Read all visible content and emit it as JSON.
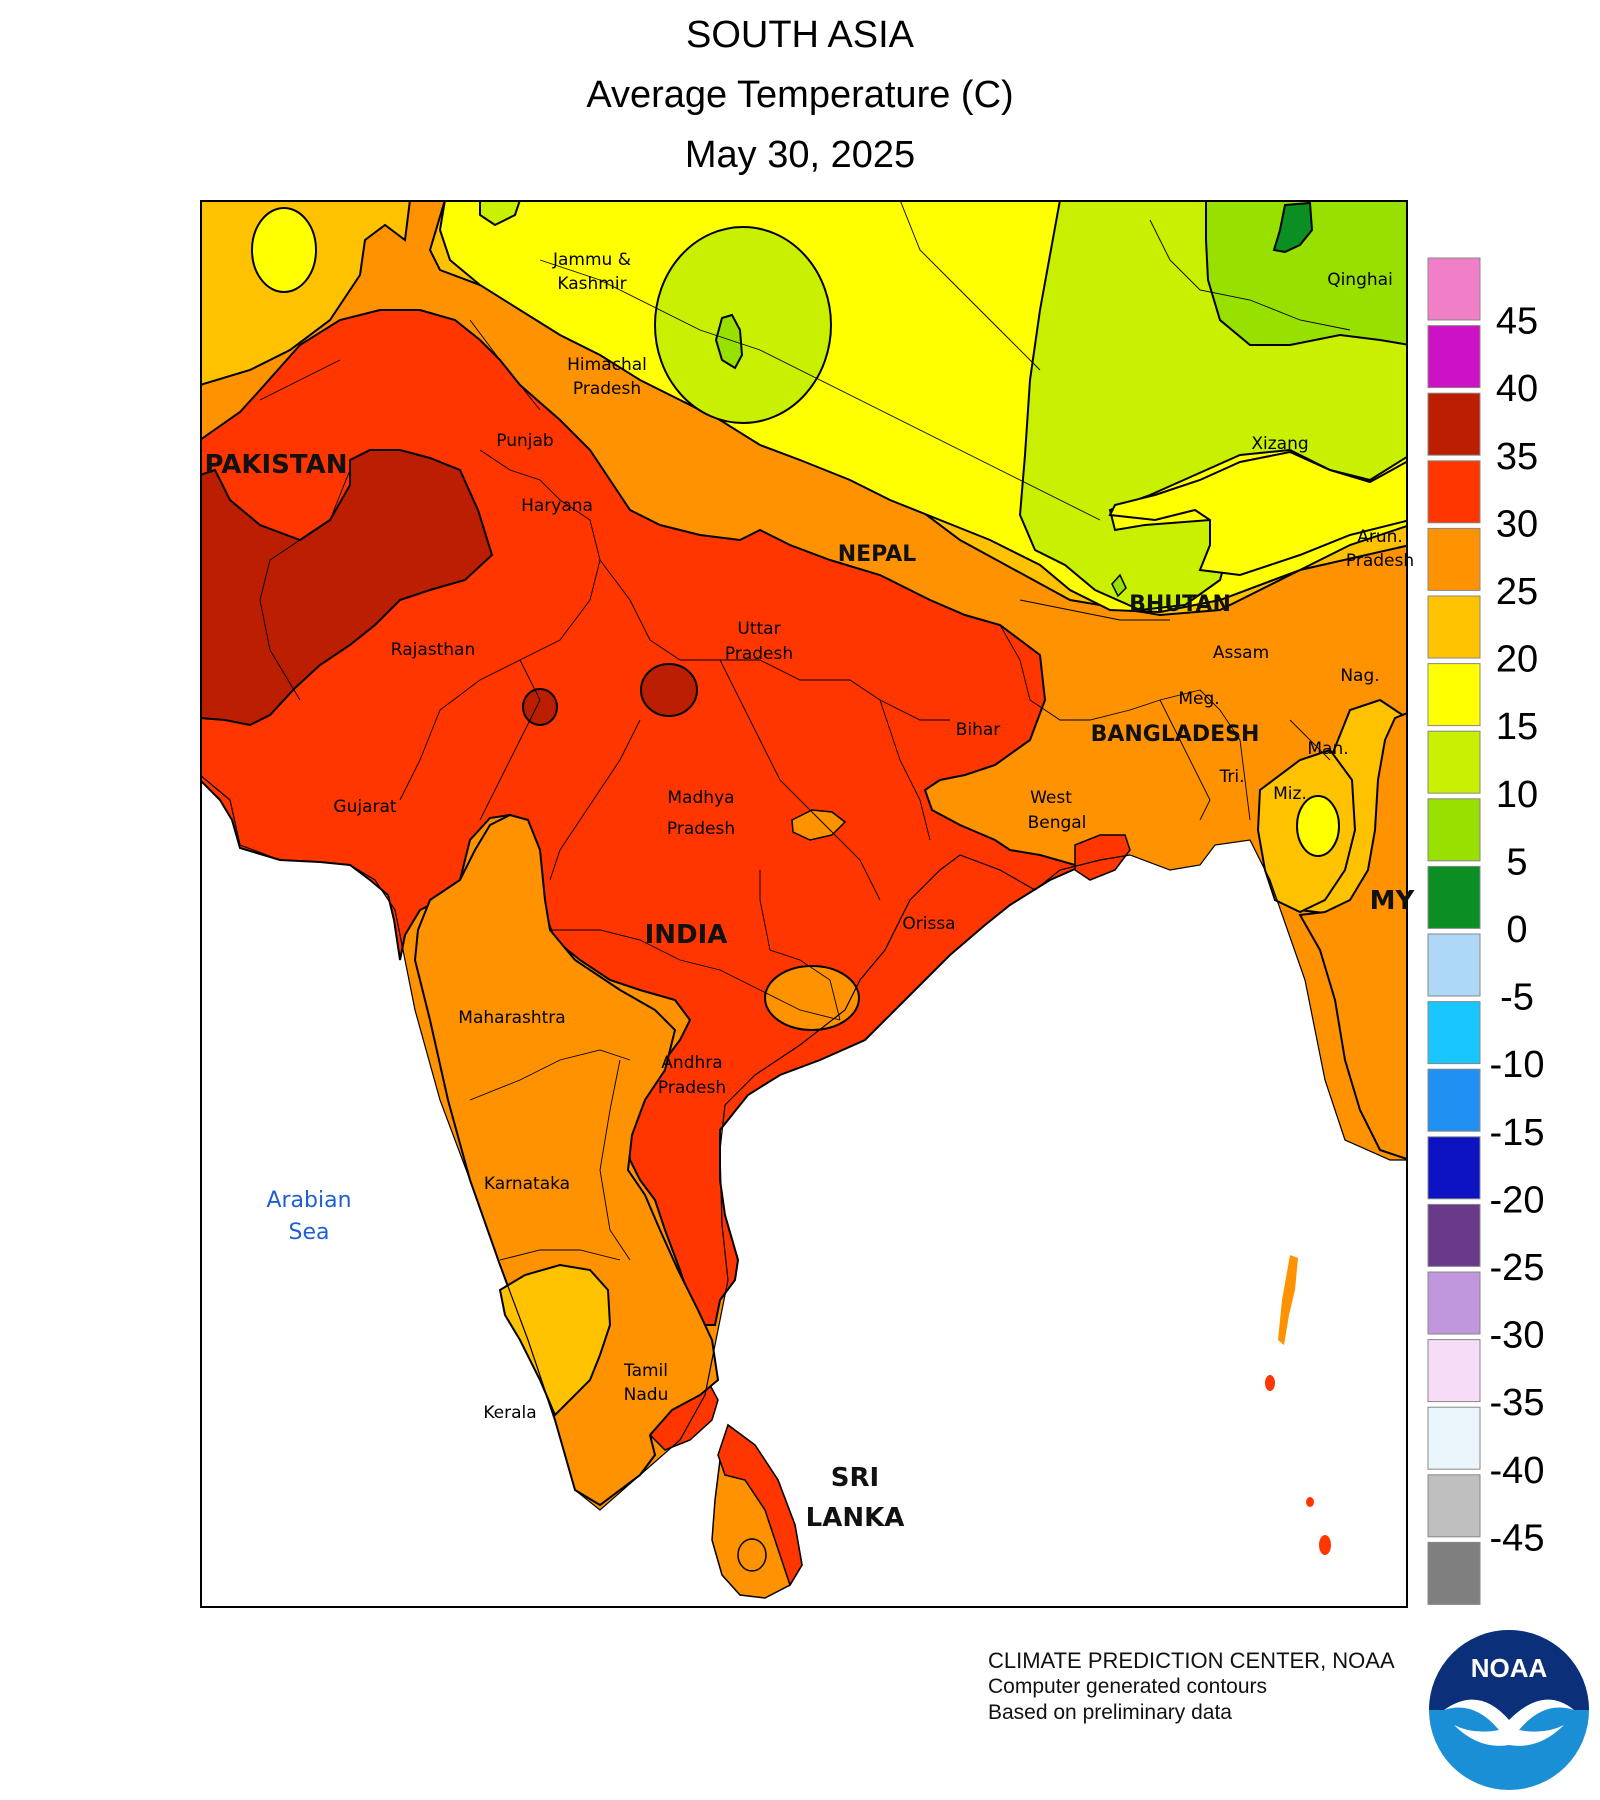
{
  "title": {
    "region": "SOUTH ASIA",
    "variable": "Average Temperature (C)",
    "date": "May 30, 2025"
  },
  "colorbar": {
    "labels": [
      "45",
      "40",
      "35",
      "30",
      "25",
      "20",
      "15",
      "10",
      "5",
      "0",
      "-5",
      "-10",
      "-15",
      "-20",
      "-25",
      "-30",
      "-35",
      "-40",
      "-45"
    ],
    "colors": [
      "#f07fc8",
      "#cc12c4",
      "#bb1e00",
      "#ff3600",
      "#ff9200",
      "#ffc200",
      "#ffff00",
      "#c8f000",
      "#98e000",
      "#0b8f22",
      "#add8f6",
      "#1ac6ff",
      "#2090f2",
      "#0d12c2",
      "#6a3a8a",
      "#c096dd",
      "#f6dcf6",
      "#eaf6fc",
      "#bfbfbf",
      "#7f7f7f"
    ]
  },
  "map": {
    "land_background_color": "#ffffff",
    "countries": [
      "PAKISTAN",
      "INDIA",
      "NEPAL",
      "BHUTAN",
      "BANGLADESH",
      "SRI",
      "LANKA",
      "MY"
    ],
    "sea": [
      "Arabian",
      "Sea"
    ],
    "states": {
      "jammu1": "Jammu &",
      "jammu2": "Kashmir",
      "himachal1": "Himachal",
      "himachal2": "Pradesh",
      "punjab": "Punjab",
      "haryana": "Haryana",
      "rajasthan": "Rajasthan",
      "gujarat": "Gujarat",
      "uttar1": "Uttar",
      "uttar2": "Pradesh",
      "madhya1": "Madhya",
      "madhya2": "Pradesh",
      "bihar": "Bihar",
      "westbengal1": "West",
      "westbengal2": "Bengal",
      "orissa": "Orissa",
      "maharashtra": "Maharashtra",
      "andhra1": "Andhra",
      "andhra2": "Pradesh",
      "karnataka": "Karnataka",
      "tamil1": "Tamil",
      "tamil2": "Nadu",
      "kerala": "Kerala",
      "assam": "Assam",
      "meg": "Meg.",
      "nag": "Nag.",
      "man": "Man.",
      "tri": "Tri.",
      "miz": "Miz.",
      "arun1": "Arun.",
      "arun2": "Pradesh",
      "xizang": "Xizang",
      "qinghai": "Qinghai"
    }
  },
  "credits": {
    "line1": "CLIMATE PREDICTION CENTER, NOAA",
    "line2": "Computer generated contours",
    "line3": "Based on preliminary data",
    "logo_text": "NOAA"
  }
}
